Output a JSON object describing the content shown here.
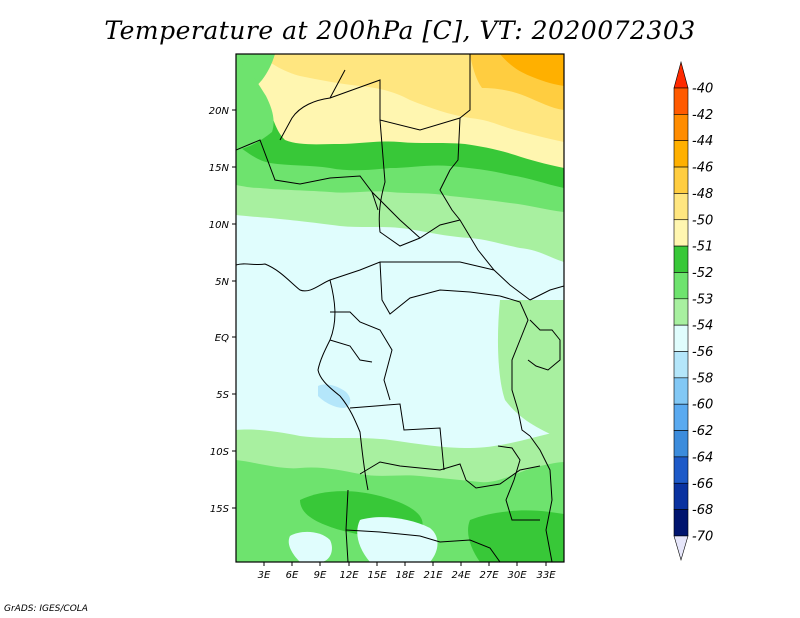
{
  "title": "Temperature at 200hPa [C], VT: 2020072303",
  "footer": "GrADS: IGES/COLA",
  "map": {
    "lon_labels": [
      "3E",
      "6E",
      "9E",
      "12E",
      "15E",
      "18E",
      "21E",
      "24E",
      "27E",
      "30E",
      "33E"
    ],
    "lat_labels": [
      "20N",
      "15N",
      "10N",
      "5N",
      "EQ",
      "5S",
      "10S",
      "15S"
    ]
  },
  "colorbar": {
    "levels": [
      "-40",
      "-42",
      "-44",
      "-46",
      "-48",
      "-50",
      "-51",
      "-52",
      "-53",
      "-54",
      "-56",
      "-58",
      "-60",
      "-62",
      "-64",
      "-66",
      "-68",
      "-70"
    ],
    "colors": [
      "#ff2a00",
      "#ff5a00",
      "#ff8c00",
      "#ffb000",
      "#ffcd40",
      "#ffe680",
      "#fff6b0",
      "#38c838",
      "#6ee36e",
      "#a8f0a0",
      "#e0fdfd",
      "#b4e6fa",
      "#82c8f5",
      "#5aaaf0",
      "#3c8cdc",
      "#1e5ac8",
      "#0a32a0",
      "#00146e"
    ]
  }
}
